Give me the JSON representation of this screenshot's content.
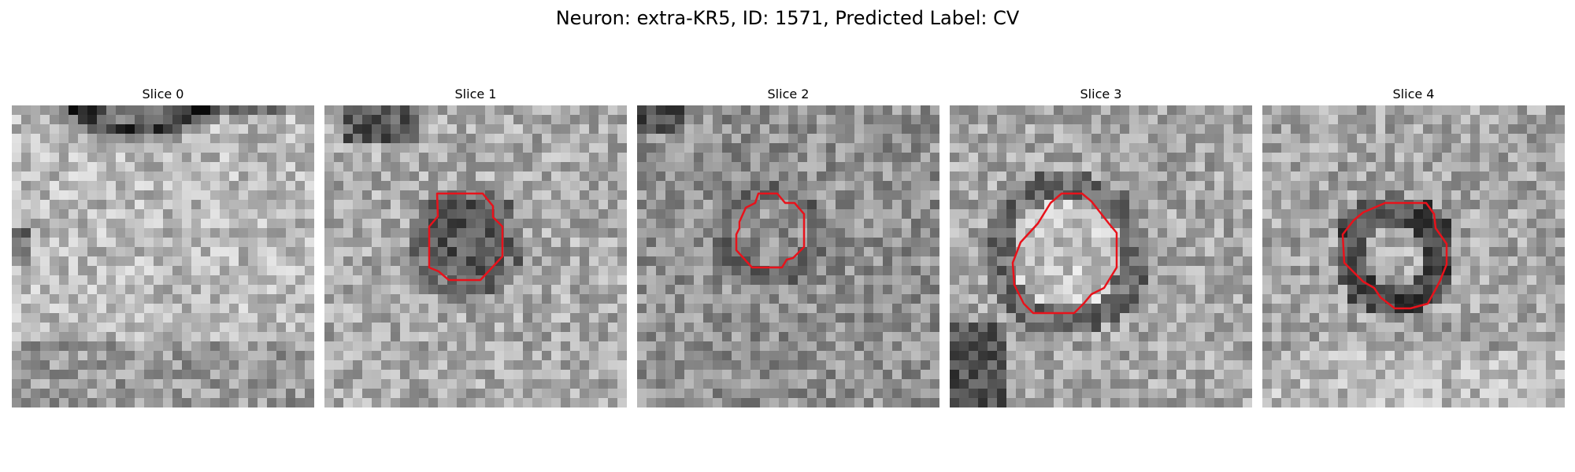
{
  "title": "Neuron: extra-KR5, ID: 1571, Predicted Label: CV",
  "contour_color": "#e8121b",
  "slices": [
    {
      "label": "Slice 0",
      "has_contour": false,
      "tone": "bright cell body with dark membrane arc at top and dark patch at left"
    },
    {
      "label": "Slice 1",
      "has_contour": true,
      "tone": "dark filled vesicle inside contour"
    },
    {
      "label": "Slice 2",
      "has_contour": true,
      "tone": "noisy mid-gray texture with faint ring"
    },
    {
      "label": "Slice 3",
      "has_contour": true,
      "tone": "bright interior surrounded by dark ring"
    },
    {
      "label": "Slice 4",
      "has_contour": true,
      "tone": "dark thick ring with bright center"
    }
  ]
}
